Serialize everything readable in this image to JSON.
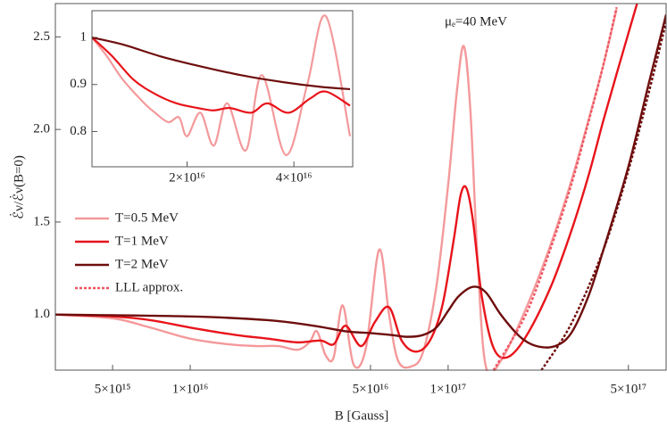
{
  "chart_data": [
    {
      "type": "line",
      "xlog": true,
      "x_label": "B [Gauss]",
      "y_label": "ℰ̇ν/ℰ̇ν(B=0)",
      "annotation": "μₑ=40 MeV",
      "xlim": [
        3000000000000000.0,
        7e+17
      ],
      "ylim": [
        0.7,
        2.68
      ],
      "xticks": [
        {
          "value": 5000000000000000.0,
          "label": "5×10¹⁵"
        },
        {
          "value": 1e+16,
          "label": "1×10¹⁶"
        },
        {
          "value": 5e+16,
          "label": "5×10¹⁶"
        },
        {
          "value": 1e+17,
          "label": "1×10¹⁷"
        },
        {
          "value": 5e+17,
          "label": "5×10¹⁷"
        }
      ],
      "yticks": [
        {
          "value": 1,
          "label": "1.0"
        },
        1.5,
        {
          "value": 2,
          "label": "2.0"
        },
        2.5
      ],
      "legend": "left",
      "series": [
        {
          "name": "T=0.5 MeV",
          "color": "#f4999b",
          "x": [
            3000000000000000.0,
            5000000000000000.0,
            7000000000000000.0,
            1e+16,
            1.4e+16,
            1.8e+16,
            2.2e+16,
            2.6e+16,
            2.9e+16,
            3.1e+16,
            3.35e+16,
            3.6e+16,
            3.9e+16,
            4.3e+16,
            4.8e+16,
            5.4e+16,
            5.9e+16,
            6.4e+16,
            7.2e+16,
            8e+16,
            9e+16,
            1e+17,
            1.08e+17,
            1.15e+17,
            1.22e+17,
            1.3e+17,
            1.4e+17,
            1.6e+17,
            2e+17,
            2.5e+17,
            3e+17,
            3.5e+17,
            4e+17,
            4.5e+17
          ],
          "values": [
            1.0,
            0.98,
            0.93,
            0.87,
            0.84,
            0.83,
            0.83,
            0.81,
            0.85,
            0.91,
            0.78,
            0.77,
            1.05,
            0.73,
            0.82,
            1.35,
            1.0,
            0.75,
            0.72,
            0.8,
            1.15,
            1.7,
            2.2,
            2.45,
            2.1,
            1.3,
            0.72,
            0.75,
            1.03,
            1.38,
            1.72,
            2.05,
            2.35,
            2.65
          ]
        },
        {
          "name": "T=1 MeV",
          "color": "#e8141b",
          "x": [
            3000000000000000.0,
            5000000000000000.0,
            7000000000000000.0,
            1e+16,
            1.5e+16,
            2e+16,
            2.6e+16,
            3.2e+16,
            3.6e+16,
            4e+16,
            4.6e+16,
            5.2e+16,
            5.9e+16,
            6.6e+16,
            7.5e+16,
            8.5e+16,
            9.5e+16,
            1.05e+17,
            1.12e+17,
            1.18e+17,
            1.25e+17,
            1.35e+17,
            1.5e+17,
            1.7e+17,
            2e+17,
            2.5e+17,
            3e+17,
            3.5e+17,
            4e+17,
            4.5e+17,
            5e+17,
            5.4e+17
          ],
          "values": [
            1.0,
            0.99,
            0.97,
            0.93,
            0.89,
            0.87,
            0.85,
            0.86,
            0.84,
            0.94,
            0.83,
            0.96,
            1.04,
            0.86,
            0.8,
            0.86,
            1.05,
            1.4,
            1.65,
            1.68,
            1.5,
            1.1,
            0.82,
            0.77,
            0.88,
            1.15,
            1.45,
            1.75,
            2.05,
            2.3,
            2.52,
            2.68
          ]
        },
        {
          "name": "T=2 MeV",
          "color": "#6e0d0d",
          "x": [
            3000000000000000.0,
            1e+16,
            2e+16,
            3e+16,
            4e+16,
            5e+16,
            6e+16,
            7e+16,
            8e+16,
            9e+16,
            1e+17,
            1.1e+17,
            1.25e+17,
            1.4e+17,
            1.6e+17,
            1.9e+17,
            2.2e+17,
            2.6e+17,
            3e+17,
            3.5e+17,
            4e+17,
            5e+17,
            6e+17,
            7e+17
          ],
          "values": [
            1.0,
            0.99,
            0.97,
            0.94,
            0.91,
            0.9,
            0.89,
            0.88,
            0.89,
            0.93,
            1.02,
            1.1,
            1.15,
            1.12,
            1.0,
            0.88,
            0.83,
            0.83,
            0.9,
            1.1,
            1.35,
            1.8,
            2.25,
            2.62
          ]
        },
        {
          "name": "LLL approx.",
          "color": "#ee5560",
          "dashed": true,
          "x": [
            1.5e+17,
            2e+17,
            2.5e+17,
            3e+17,
            3.5e+17,
            4e+17,
            4.5e+17
          ],
          "values": [
            0.7,
            1.0,
            1.36,
            1.7,
            2.04,
            2.35,
            2.66
          ]
        },
        {
          "color": "#6e0d0d",
          "dashed": true,
          "x": [
            2.3e+17,
            3e+17,
            4e+17,
            5e+17,
            6e+17,
            7e+17
          ],
          "values": [
            0.7,
            0.95,
            1.35,
            1.78,
            2.2,
            2.58
          ]
        }
      ]
    },
    {
      "type": "line",
      "xlog": false,
      "xlim": [
        2200000000000000.0,
        5.1e+16
      ],
      "ylim": [
        0.725,
        1.057
      ],
      "xticks": [
        {
          "value": 2e+16,
          "label": "2×10¹⁶"
        },
        {
          "value": 4e+16,
          "label": "4×10¹⁶"
        }
      ],
      "yticks": [
        1,
        0.9,
        0.8
      ],
      "series": [
        {
          "color": "#f4999b",
          "x": [
            2200000000000000.0,
            5000000000000000.0,
            8000000000000000.0,
            1.2e+16,
            1.4e+16,
            1.65e+16,
            1.85e+16,
            2e+16,
            2.25e+16,
            2.5e+16,
            2.75e+16,
            3.1e+16,
            3.4e+16,
            3.85e+16,
            4.25e+16,
            4.6e+16,
            5.05e+16
          ],
          "values": [
            1.0,
            0.96,
            0.91,
            0.86,
            0.84,
            0.82,
            0.83,
            0.79,
            0.84,
            0.77,
            0.86,
            0.76,
            0.92,
            0.75,
            0.9,
            1.045,
            0.79
          ]
        },
        {
          "color": "#e8141b",
          "x": [
            2200000000000000.0,
            6000000000000000.0,
            1e+16,
            1.4e+16,
            1.8e+16,
            2.2e+16,
            2.5e+16,
            2.8e+16,
            3.2e+16,
            3.5e+16,
            3.9e+16,
            4.3e+16,
            4.6e+16,
            5.05e+16
          ],
          "values": [
            1.0,
            0.96,
            0.91,
            0.88,
            0.86,
            0.85,
            0.845,
            0.85,
            0.84,
            0.86,
            0.84,
            0.87,
            0.885,
            0.855
          ]
        },
        {
          "color": "#6e0d0d",
          "x": [
            2200000000000000.0,
            8000000000000000.0,
            1.5e+16,
            2.2e+16,
            3e+16,
            3.8e+16,
            4.5e+16,
            5.05e+16
          ],
          "values": [
            1.0,
            0.985,
            0.96,
            0.94,
            0.92,
            0.905,
            0.895,
            0.89
          ]
        }
      ]
    }
  ]
}
